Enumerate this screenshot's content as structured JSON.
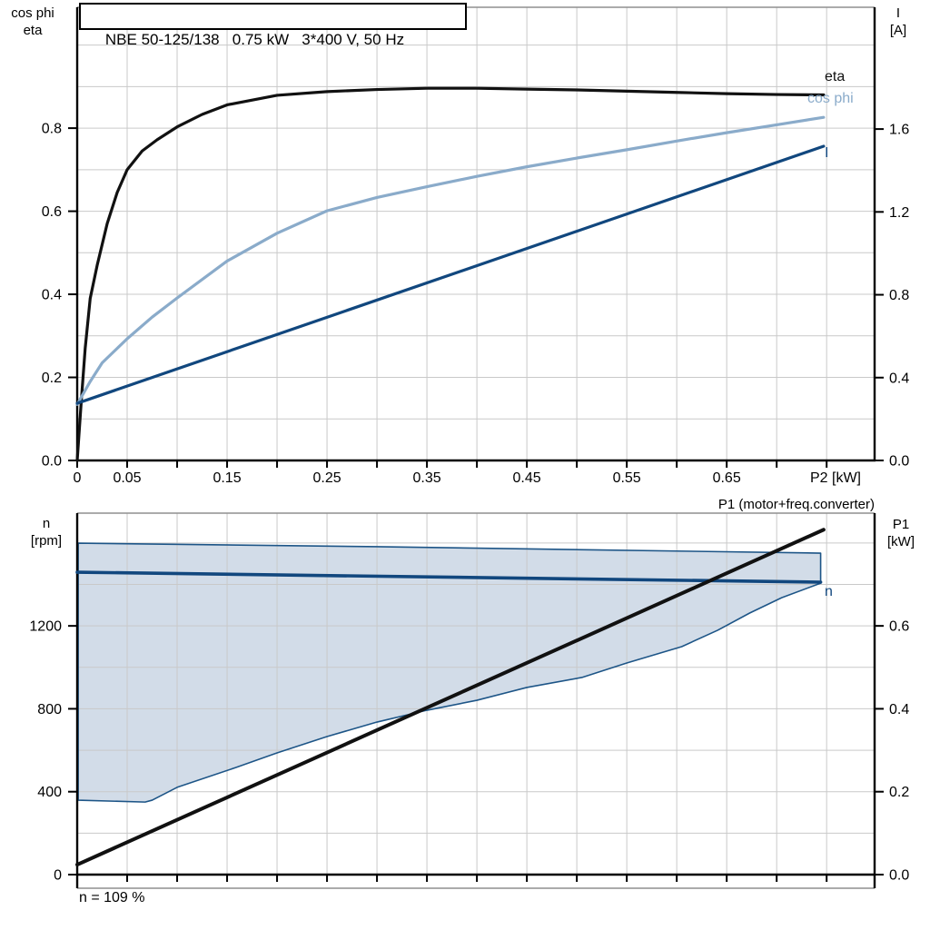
{
  "title": "NBE 50-125/138   0.75 kW   3*400 V, 50 Hz",
  "footnote": "n = 109 %",
  "colors": {
    "black_curve": "#111111",
    "dark_blue": "#11477e",
    "light_blue": "#8aabca",
    "area_fill": "#d2dce8",
    "area_edge": "#1d5587",
    "grid": "#c9c9c9",
    "border": "#8f8f8f",
    "axis": "#000000"
  },
  "chart_data": [
    {
      "type": "line",
      "position": "top",
      "x_axis": {
        "label": "P2 [kW]",
        "min": 0,
        "max": 0.798,
        "minor_tick_step": 0.05,
        "tick_values": [
          0,
          0.05,
          0.15,
          0.25,
          0.35,
          0.45,
          0.55,
          0.65
        ],
        "tick_labels": [
          "0",
          "0.05",
          "0.15",
          "0.25",
          "0.35",
          "0.45",
          "0.55",
          "0.65"
        ]
      },
      "left_axis": {
        "title_lines": [
          "cos phi",
          "eta"
        ],
        "min": 0,
        "max": 1.091,
        "grid_step": 0.1,
        "tick_values": [
          0.8,
          0.6,
          0.4,
          0.2,
          0.0
        ],
        "tick_labels": [
          "0.8",
          "0.6",
          "0.4",
          "0.2",
          "0.0"
        ]
      },
      "right_axis": {
        "title_lines": [
          "I",
          "[A]"
        ],
        "min": 0,
        "max": 2.188,
        "tick_values": [
          1.6,
          1.2,
          0.8,
          0.4,
          0.0
        ],
        "tick_labels": [
          "1.6",
          "1.2",
          "0.8",
          "0.4",
          "0.0"
        ]
      },
      "series": [
        {
          "key": "eta",
          "name": "eta",
          "axis": "left",
          "color": "#111111",
          "width": 3.2,
          "x": [
            0,
            0.004,
            0.008,
            0.013,
            0.02,
            0.03,
            0.04,
            0.05,
            0.065,
            0.08,
            0.1,
            0.125,
            0.15,
            0.2,
            0.25,
            0.3,
            0.35,
            0.4,
            0.45,
            0.5,
            0.55,
            0.6,
            0.65,
            0.7,
            0.747
          ],
          "y": [
            0,
            0.14,
            0.27,
            0.39,
            0.47,
            0.57,
            0.645,
            0.7,
            0.745,
            0.772,
            0.803,
            0.833,
            0.856,
            0.879,
            0.888,
            0.893,
            0.896,
            0.896,
            0.894,
            0.892,
            0.889,
            0.886,
            0.883,
            0.881,
            0.88
          ]
        },
        {
          "key": "cos-phi",
          "name": "cos phi",
          "axis": "left",
          "color": "#8aabca",
          "width": 3.2,
          "x": [
            0,
            0.013,
            0.025,
            0.05,
            0.075,
            0.1,
            0.15,
            0.2,
            0.25,
            0.3,
            0.35,
            0.4,
            0.45,
            0.5,
            0.55,
            0.6,
            0.65,
            0.7,
            0.747
          ],
          "y": [
            0.135,
            0.19,
            0.235,
            0.293,
            0.345,
            0.391,
            0.48,
            0.547,
            0.601,
            0.633,
            0.659,
            0.684,
            0.707,
            0.728,
            0.748,
            0.769,
            0.789,
            0.808,
            0.826
          ]
        },
        {
          "key": "current",
          "name": "I",
          "axis": "right",
          "color": "#11477e",
          "width": 3.2,
          "x": [
            0,
            0.747
          ],
          "y": [
            0.276,
            1.517
          ]
        }
      ]
    },
    {
      "type": "line+area",
      "position": "bottom",
      "header_label": "P1 (motor+freq.converter)",
      "x_axis": {
        "label": "",
        "min": 0,
        "max": 0.798,
        "minor_tick_step": 0.05,
        "tick_values": [],
        "tick_labels": []
      },
      "left_axis": {
        "title_lines": [
          "n",
          "[rpm]"
        ],
        "min": 0,
        "max": 1744,
        "grid_step": 200,
        "tick_values": [
          1200,
          800,
          400,
          0
        ],
        "tick_labels": [
          "1200",
          "800",
          "400",
          "0"
        ]
      },
      "right_axis": {
        "title_lines": [
          "P1",
          "[kW]"
        ],
        "min": 0,
        "max": 0.872,
        "tick_values": [
          0.6,
          0.4,
          0.2,
          0.0
        ],
        "tick_labels": [
          "0.6",
          "0.4",
          "0.2",
          "0.0"
        ]
      },
      "area": {
        "name": "speed operating range",
        "fill": "#d2dce8",
        "edge_color": "#1d5587",
        "edge_width": 1.6,
        "upper": {
          "x": [
            0.001,
            0.3,
            0.744
          ],
          "n": [
            1599,
            1582,
            1551
          ]
        },
        "lower": {
          "x": [
            0.001,
            0.068,
            0.075,
            0.1,
            0.159,
            0.2,
            0.25,
            0.3,
            0.35,
            0.4,
            0.45,
            0.505,
            0.55,
            0.605,
            0.641,
            0.673,
            0.705,
            0.744
          ],
          "n": [
            359,
            350,
            359,
            421,
            517,
            587,
            666,
            736,
            793,
            841,
            903,
            951,
            1021,
            1100,
            1179,
            1262,
            1336,
            1406
          ]
        }
      },
      "series": [
        {
          "key": "speed",
          "name": "n",
          "axis": "left",
          "color": "#11477e",
          "width": 3.6,
          "x": [
            0,
            0.744
          ],
          "y": [
            1459,
            1411
          ]
        },
        {
          "key": "p1",
          "name": "P1",
          "axis": "right",
          "color": "#111111",
          "width": 4,
          "x": [
            0,
            0.747
          ],
          "y": [
            0.024,
            0.832
          ]
        }
      ]
    }
  ]
}
